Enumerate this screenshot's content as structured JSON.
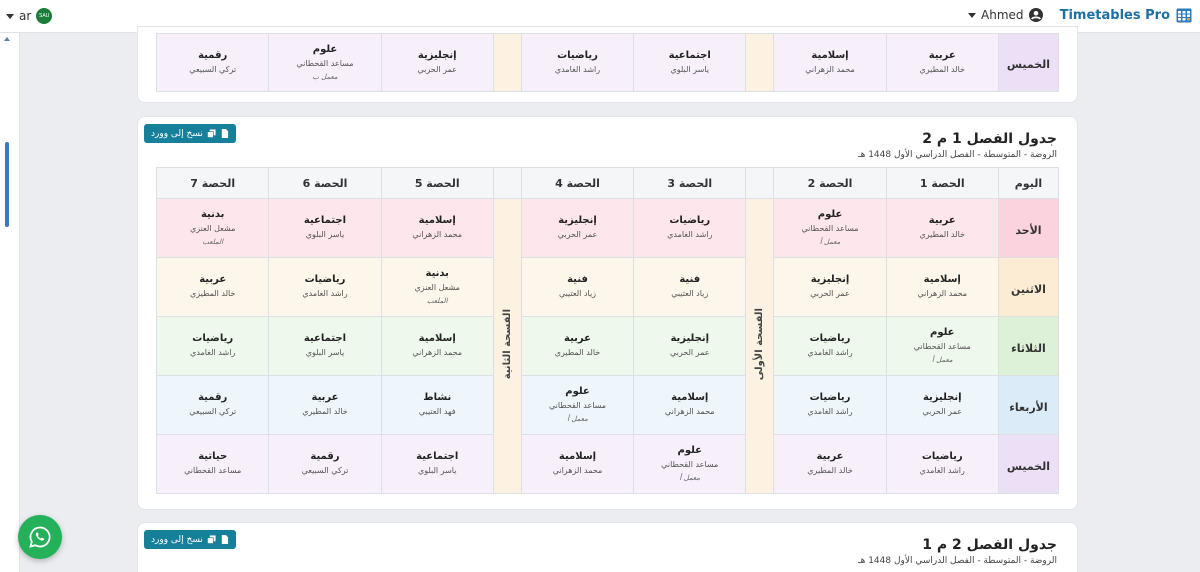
{
  "nav": {
    "brand": "Timetables Pro",
    "user": "Ahmed",
    "lang": "ar",
    "flag_text": "SAU"
  },
  "word_button": "نسخ إلى وورد",
  "top_card": {
    "day": "الخميس",
    "cells": [
      {
        "subject": "عربية",
        "teacher": "خالد المطيري",
        "room": ""
      },
      {
        "subject": "إسلامية",
        "teacher": "محمد الزهراني",
        "room": ""
      },
      {
        "subject": "اجتماعية",
        "teacher": "ياسر البلوي",
        "room": ""
      },
      {
        "subject": "رياضيات",
        "teacher": "راشد الغامدي",
        "room": ""
      },
      {
        "subject": "إنجليزية",
        "teacher": "عمر الحربي",
        "room": ""
      },
      {
        "subject": "علوم",
        "teacher": "مساعد القحطاني",
        "room": "معمل ب"
      },
      {
        "subject": "رقمية",
        "teacher": "تركي السبيعي",
        "room": ""
      }
    ]
  },
  "mid_card": {
    "title": "جدول الفصل 1 م 2",
    "subtitle": "الروضة - المتوسطة - الفصل الدراسي الأول 1448 هـ",
    "headers": {
      "day": "اليوم",
      "p1": "الحصة 1",
      "p2": "الحصة 2",
      "p3": "الحصة 3",
      "p4": "الحصة 4",
      "p5": "الحصة 5",
      "p6": "الحصة 6",
      "p7": "الحصة 7"
    },
    "break1": "الفسحة الأولى",
    "break2": "الفسحة الثانية",
    "rows": [
      {
        "day": "الأحد",
        "cells": [
          {
            "subject": "عربية",
            "teacher": "خالد المطيري",
            "room": ""
          },
          {
            "subject": "علوم",
            "teacher": "مساعد القحطاني",
            "room": "معمل أ"
          },
          {
            "subject": "رياضيات",
            "teacher": "راشد الغامدي",
            "room": ""
          },
          {
            "subject": "إنجليزية",
            "teacher": "عمر الحربي",
            "room": ""
          },
          {
            "subject": "إسلامية",
            "teacher": "محمد الزهراني",
            "room": ""
          },
          {
            "subject": "اجتماعية",
            "teacher": "ياسر البلوي",
            "room": ""
          },
          {
            "subject": "بدنية",
            "teacher": "مشعل العنزي",
            "room": "الملعب"
          }
        ]
      },
      {
        "day": "الاثنين",
        "cells": [
          {
            "subject": "إسلامية",
            "teacher": "محمد الزهراني",
            "room": ""
          },
          {
            "subject": "إنجليزية",
            "teacher": "عمر الحربي",
            "room": ""
          },
          {
            "subject": "فنية",
            "teacher": "زياد العتيبي",
            "room": ""
          },
          {
            "subject": "فنية",
            "teacher": "زياد العتيبي",
            "room": ""
          },
          {
            "subject": "بدنية",
            "teacher": "مشعل العنزي",
            "room": "الملعب"
          },
          {
            "subject": "رياضيات",
            "teacher": "راشد الغامدي",
            "room": ""
          },
          {
            "subject": "عربية",
            "teacher": "خالد المطيري",
            "room": ""
          }
        ]
      },
      {
        "day": "الثلاثاء",
        "cells": [
          {
            "subject": "علوم",
            "teacher": "مساعد القحطاني",
            "room": "معمل أ"
          },
          {
            "subject": "رياضيات",
            "teacher": "راشد الغامدي",
            "room": ""
          },
          {
            "subject": "إنجليزية",
            "teacher": "عمر الحربي",
            "room": ""
          },
          {
            "subject": "عربية",
            "teacher": "خالد المطيري",
            "room": ""
          },
          {
            "subject": "إسلامية",
            "teacher": "محمد الزهراني",
            "room": ""
          },
          {
            "subject": "اجتماعية",
            "teacher": "ياسر البلوي",
            "room": ""
          },
          {
            "subject": "رياضيات",
            "teacher": "راشد الغامدي",
            "room": ""
          }
        ]
      },
      {
        "day": "الأربعاء",
        "cells": [
          {
            "subject": "إنجليزية",
            "teacher": "عمر الحربي",
            "room": ""
          },
          {
            "subject": "رياضيات",
            "teacher": "راشد الغامدي",
            "room": ""
          },
          {
            "subject": "إسلامية",
            "teacher": "محمد الزهراني",
            "room": ""
          },
          {
            "subject": "علوم",
            "teacher": "مساعد القحطاني",
            "room": "معمل أ"
          },
          {
            "subject": "نشاط",
            "teacher": "فهد العتيبي",
            "room": ""
          },
          {
            "subject": "عربية",
            "teacher": "خالد المطيري",
            "room": ""
          },
          {
            "subject": "رقمية",
            "teacher": "تركي السبيعي",
            "room": ""
          }
        ]
      },
      {
        "day": "الخميس",
        "cells": [
          {
            "subject": "رياضيات",
            "teacher": "راشد الغامدي",
            "room": ""
          },
          {
            "subject": "عربية",
            "teacher": "خالد المطيري",
            "room": ""
          },
          {
            "subject": "علوم",
            "teacher": "مساعد القحطاني",
            "room": "معمل أ"
          },
          {
            "subject": "إسلامية",
            "teacher": "محمد الزهراني",
            "room": ""
          },
          {
            "subject": "اجتماعية",
            "teacher": "ياسر البلوي",
            "room": ""
          },
          {
            "subject": "رقمية",
            "teacher": "تركي السبيعي",
            "room": ""
          },
          {
            "subject": "حياتية",
            "teacher": "مساعد القحطاني",
            "room": ""
          }
        ]
      }
    ]
  },
  "bot_card": {
    "title": "جدول الفصل 2 م 1",
    "subtitle": "الروضة - المتوسطة - الفصل الدراسي الأول 1448 هـ"
  },
  "colors": {
    "brand": "#1e6fa3",
    "button": "#16809a",
    "whatsapp": "#25b15a"
  }
}
